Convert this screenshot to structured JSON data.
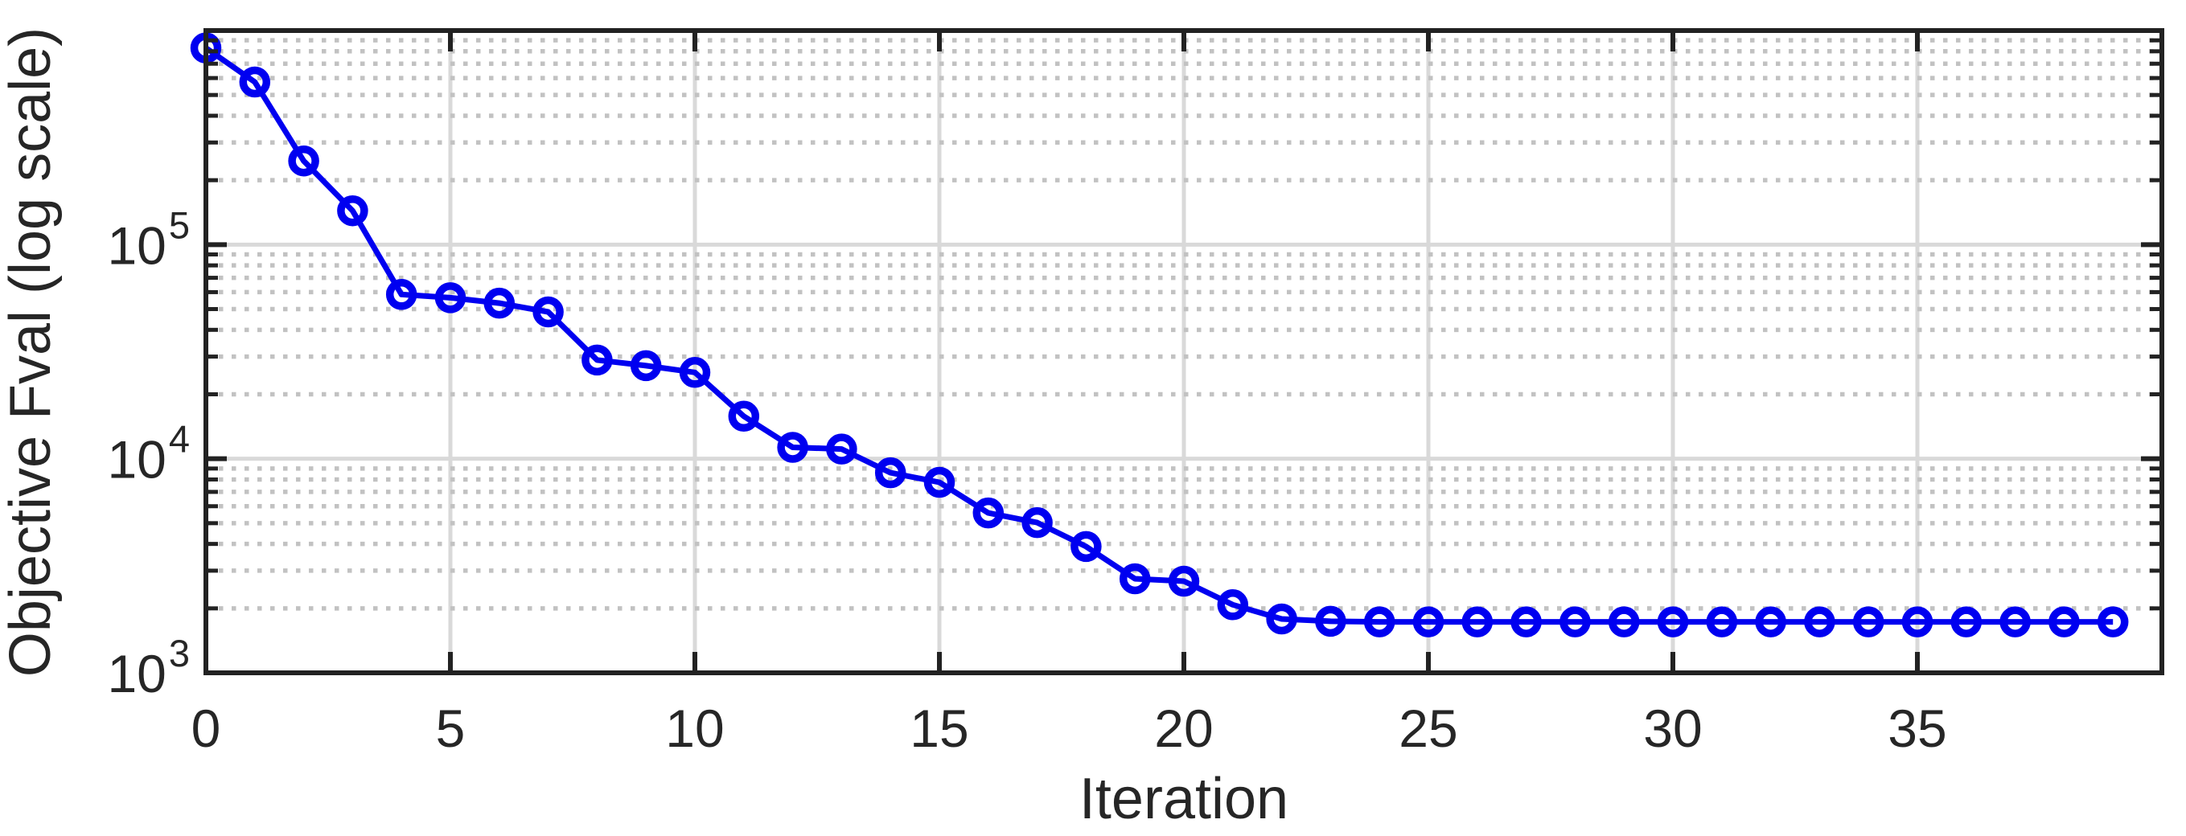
{
  "figure": {
    "background_color": "#ffffff",
    "title": ""
  },
  "style": {
    "axis_color": "#222222",
    "text_color": "#262626",
    "major_grid_color": "#d9d9d9",
    "minor_grid_color": "#c2c2c2",
    "line_color": "#0000f0",
    "marker_fill": "none",
    "background": "#ffffff"
  },
  "chart_data": {
    "type": "line",
    "title": "",
    "xlabel": "Iteration",
    "ylabel": "Objective Fval (log scale)",
    "yscale": "log",
    "xlim": [
      0,
      40
    ],
    "ylim": [
      1000,
      1000000
    ],
    "x_ticks": [
      0,
      5,
      10,
      15,
      20,
      25,
      30,
      35
    ],
    "y_tick_base": "10",
    "y_tick_exponents": [
      3,
      4,
      5
    ],
    "y_grid_exponents": [
      4,
      5
    ],
    "y_minor_multiples": [
      2,
      3,
      4,
      5,
      6,
      7,
      8,
      9
    ],
    "y_minor_decades": [
      3,
      4,
      5
    ],
    "grid": "on",
    "minor_grid": "dotted",
    "legend": "none",
    "marker": "o",
    "series": [
      {
        "name": "Objective Fval",
        "x": [
          0,
          1,
          2,
          3,
          4,
          5,
          6,
          7,
          8,
          9,
          10,
          11,
          12,
          13,
          14,
          15,
          16,
          17,
          18,
          19,
          20,
          21,
          22,
          23,
          24,
          25,
          26,
          27,
          28,
          29,
          30,
          31,
          32,
          33,
          34,
          35,
          36,
          37,
          38,
          39
        ],
        "values": [
          830000,
          575000,
          246000,
          144000,
          58500,
          56500,
          53300,
          48500,
          28900,
          27200,
          25300,
          15800,
          11300,
          11100,
          8600,
          7760,
          5580,
          5030,
          3890,
          2750,
          2680,
          2080,
          1785,
          1740,
          1730,
          1730,
          1730,
          1730,
          1730,
          1730,
          1730,
          1730,
          1730,
          1730,
          1730,
          1730,
          1730,
          1730,
          1730,
          1730
        ]
      }
    ]
  }
}
